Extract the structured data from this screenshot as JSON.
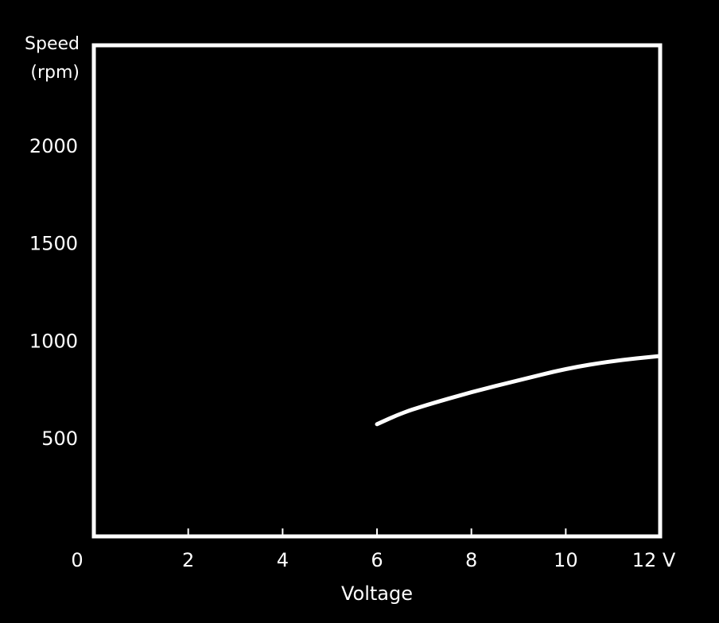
{
  "chart_data": {
    "type": "line",
    "ylabel_line1": "Speed",
    "ylabel_line2": "(rpm)",
    "xlabel": "Voltage",
    "x_unit": "V",
    "xlim": [
      0,
      12
    ],
    "ylim": [
      0,
      2500
    ],
    "x_ticks": [
      0,
      2,
      4,
      6,
      8,
      10,
      12
    ],
    "x_tick_labels": [
      "0",
      "2",
      "4",
      "6",
      "8",
      "10",
      "12 V"
    ],
    "y_ticks": [
      500,
      1000,
      1500,
      2000
    ],
    "y_tick_labels": [
      "500",
      "1000",
      "1500",
      "2000"
    ],
    "grid": true,
    "series": [
      {
        "x": [
          6.0,
          6.5,
          7.0,
          8.0,
          9.0,
          10.0,
          11.0,
          12.0
        ],
        "y": [
          570,
          625,
          665,
          735,
          795,
          855,
          895,
          920
        ]
      }
    ]
  },
  "colors": {
    "background": "#000000",
    "foreground": "#ffffff",
    "grid": "#4a4a4a"
  }
}
